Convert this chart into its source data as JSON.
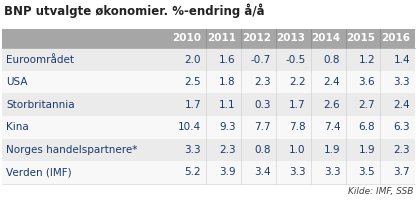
{
  "title": "BNP utvalgte økonomier. %-endring å/å",
  "columns": [
    "2010",
    "2011",
    "2012",
    "2013",
    "2014",
    "2015",
    "2016"
  ],
  "rows": [
    {
      "label": "Euroområdet",
      "values": [
        "2.0",
        "1.6",
        "-0.7",
        "-0.5",
        "0.8",
        "1.2",
        "1.4"
      ]
    },
    {
      "label": "USA",
      "values": [
        "2.5",
        "1.8",
        "2.3",
        "2.2",
        "2.4",
        "3.6",
        "3.3"
      ]
    },
    {
      "label": "Storbritannia",
      "values": [
        "1.7",
        "1.1",
        "0.3",
        "1.7",
        "2.6",
        "2.7",
        "2.4"
      ]
    },
    {
      "label": "Kina",
      "values": [
        "10.4",
        "9.3",
        "7.7",
        "7.8",
        "7.4",
        "6.8",
        "6.3"
      ]
    },
    {
      "label": "Norges handelspartnere*",
      "values": [
        "3.3",
        "2.3",
        "0.8",
        "1.0",
        "1.9",
        "1.9",
        "2.3"
      ]
    },
    {
      "label": "Verden (IMF)",
      "values": [
        "5.2",
        "3.9",
        "3.4",
        "3.3",
        "3.3",
        "3.5",
        "3.7"
      ]
    }
  ],
  "source": "Kilde: IMF, SSB",
  "header_bg": "#a6a6a6",
  "header_fg": "#ffffff",
  "row_bg_light": "#ebebeb",
  "row_bg_white": "#f8f8f8",
  "text_color": "#1a3a6b",
  "title_color": "#222222",
  "title_fontsize": 8.5,
  "header_fontsize": 7.5,
  "cell_fontsize": 7.5,
  "source_fontsize": 6.5
}
